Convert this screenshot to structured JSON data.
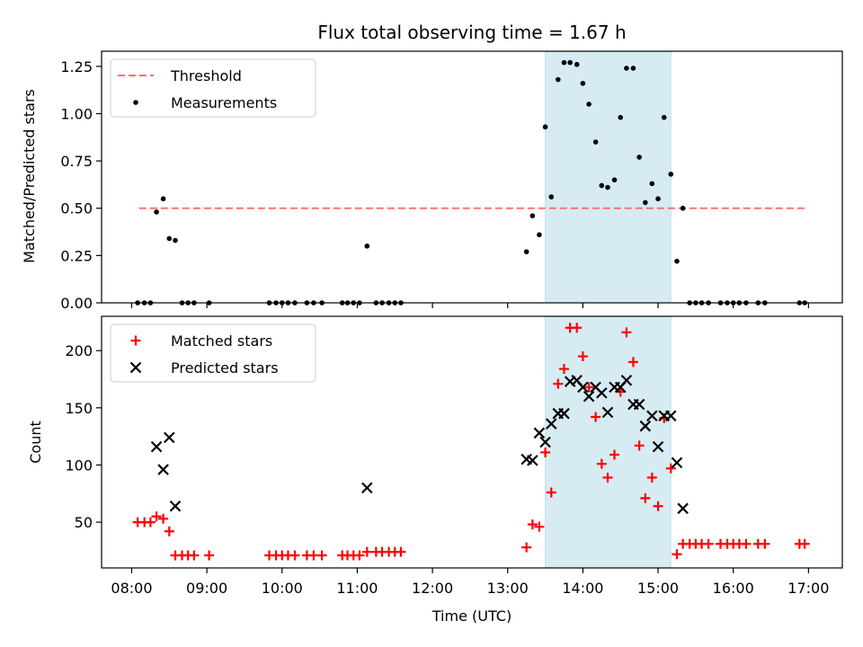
{
  "chart_data": [
    {
      "type": "scatter",
      "title": "Flux total observing time = 1.67 h",
      "xlabel": "",
      "ylabel": "Matched/Predicted stars",
      "xlim": [
        7.6,
        17.45
      ],
      "ylim": [
        0.0,
        1.33
      ],
      "x_ticks": [
        8,
        9,
        10,
        11,
        12,
        13,
        14,
        15,
        16,
        17
      ],
      "y_ticks": [
        0.0,
        0.25,
        0.5,
        0.75,
        1.0,
        1.25
      ],
      "y_tick_labels": [
        "0.00",
        "0.25",
        "0.50",
        "0.75",
        "1.00",
        "1.25"
      ],
      "shaded_region": {
        "x_start": 13.5,
        "x_end": 15.17,
        "color": "#add8e6"
      },
      "threshold": {
        "name": "Threshold",
        "value": 0.5,
        "x_start": 8.1,
        "x_end": 16.95,
        "color": "#ff7070"
      },
      "legend": {
        "placement": "upper left",
        "entries": [
          "Threshold",
          "Measurements"
        ]
      },
      "series": [
        {
          "name": "Measurements",
          "color": "#000000",
          "marker": "dot",
          "x": [
            8.08,
            8.17,
            8.25,
            8.33,
            8.42,
            8.5,
            8.58,
            8.67,
            8.75,
            8.83,
            9.03,
            9.83,
            9.92,
            10.0,
            10.08,
            10.17,
            10.33,
            10.42,
            10.53,
            10.8,
            10.87,
            10.95,
            11.03,
            11.13,
            11.25,
            11.33,
            11.42,
            11.5,
            11.58,
            13.25,
            13.33,
            13.42,
            13.5,
            13.58,
            13.67,
            13.75,
            13.83,
            13.92,
            14.0,
            14.08,
            14.17,
            14.25,
            14.33,
            14.42,
            14.5,
            14.58,
            14.67,
            14.75,
            14.83,
            14.92,
            15.0,
            15.08,
            15.17,
            15.25,
            15.33,
            15.42,
            15.5,
            15.58,
            15.67,
            15.83,
            15.92,
            16.0,
            16.08,
            16.17,
            16.33,
            16.42,
            16.88,
            16.95
          ],
          "y": [
            0.0,
            0.0,
            0.0,
            0.48,
            0.55,
            0.34,
            0.33,
            0.0,
            0.0,
            0.0,
            0.0,
            0.0,
            0.0,
            0.0,
            0.0,
            0.0,
            0.0,
            0.0,
            0.0,
            0.0,
            0.0,
            0.0,
            0.0,
            0.3,
            0.0,
            0.0,
            0.0,
            0.0,
            0.0,
            0.27,
            0.46,
            0.36,
            0.93,
            0.56,
            1.18,
            1.27,
            1.27,
            1.26,
            1.16,
            1.05,
            0.85,
            0.62,
            0.61,
            0.65,
            0.98,
            1.24,
            1.24,
            0.77,
            0.53,
            0.63,
            0.55,
            0.98,
            0.68,
            0.22,
            0.5,
            0.0,
            0.0,
            0.0,
            0.0,
            0.0,
            0.0,
            0.0,
            0.0,
            0.0,
            0.0,
            0.0,
            0.0,
            0.0
          ]
        }
      ]
    },
    {
      "type": "scatter",
      "title": "",
      "xlabel": "Time (UTC)",
      "ylabel": "Count",
      "xlim": [
        7.6,
        17.45
      ],
      "ylim": [
        10,
        230
      ],
      "x_ticks": [
        8,
        9,
        10,
        11,
        12,
        13,
        14,
        15,
        16,
        17
      ],
      "x_tick_labels": [
        "08:00",
        "09:00",
        "10:00",
        "11:00",
        "12:00",
        "13:00",
        "14:00",
        "15:00",
        "16:00",
        "17:00"
      ],
      "y_ticks": [
        50,
        100,
        150,
        200
      ],
      "y_tick_labels": [
        "50",
        "100",
        "150",
        "200"
      ],
      "shaded_region": {
        "x_start": 13.5,
        "x_end": 15.17,
        "color": "#add8e6"
      },
      "legend": {
        "placement": "upper left",
        "entries": [
          "Matched stars",
          "Predicted stars"
        ]
      },
      "series": [
        {
          "name": "Matched stars",
          "color": "#ff0000",
          "marker": "plus",
          "x": [
            8.08,
            8.17,
            8.25,
            8.33,
            8.42,
            8.5,
            8.58,
            8.67,
            8.75,
            8.83,
            9.03,
            9.83,
            9.92,
            10.0,
            10.08,
            10.17,
            10.33,
            10.42,
            10.53,
            10.8,
            10.87,
            10.95,
            11.03,
            11.13,
            11.25,
            11.33,
            11.42,
            11.5,
            11.58,
            13.25,
            13.33,
            13.42,
            13.5,
            13.58,
            13.67,
            13.75,
            13.83,
            13.92,
            14.0,
            14.08,
            14.17,
            14.25,
            14.33,
            14.42,
            14.5,
            14.58,
            14.67,
            14.75,
            14.83,
            14.92,
            15.0,
            15.08,
            15.17,
            15.25,
            15.33,
            15.42,
            15.5,
            15.58,
            15.67,
            15.83,
            15.92,
            16.0,
            16.08,
            16.17,
            16.33,
            16.42,
            16.88,
            16.95
          ],
          "y": [
            50,
            50,
            50,
            55,
            53,
            42,
            21,
            21,
            21,
            21,
            21,
            21,
            21,
            21,
            21,
            21,
            21,
            21,
            21,
            21,
            21,
            21,
            21,
            24,
            24,
            24,
            24,
            24,
            24,
            28,
            48,
            46,
            111,
            76,
            171,
            184,
            220,
            220,
            195,
            168,
            142,
            101,
            89,
            109,
            164,
            216,
            190,
            117,
            71,
            89,
            64,
            141,
            97,
            22,
            31,
            31,
            31,
            31,
            31,
            31,
            31,
            31,
            31,
            31,
            31,
            31,
            31,
            31
          ]
        },
        {
          "name": "Predicted stars",
          "color": "#000000",
          "marker": "x",
          "x": [
            8.33,
            8.42,
            8.5,
            8.58,
            11.13,
            13.25,
            13.33,
            13.42,
            13.5,
            13.58,
            13.67,
            13.75,
            13.83,
            13.92,
            14.0,
            14.08,
            14.17,
            14.25,
            14.33,
            14.42,
            14.5,
            14.58,
            14.67,
            14.75,
            14.83,
            14.92,
            15.0,
            15.08,
            15.17,
            15.25,
            15.33
          ],
          "y": [
            116,
            96,
            124,
            64,
            80,
            105,
            104,
            128,
            120,
            136,
            145,
            145,
            173,
            174,
            168,
            160,
            168,
            163,
            146,
            168,
            168,
            174,
            153,
            153,
            134,
            143,
            116,
            143,
            143,
            102,
            62
          ]
        }
      ]
    }
  ]
}
